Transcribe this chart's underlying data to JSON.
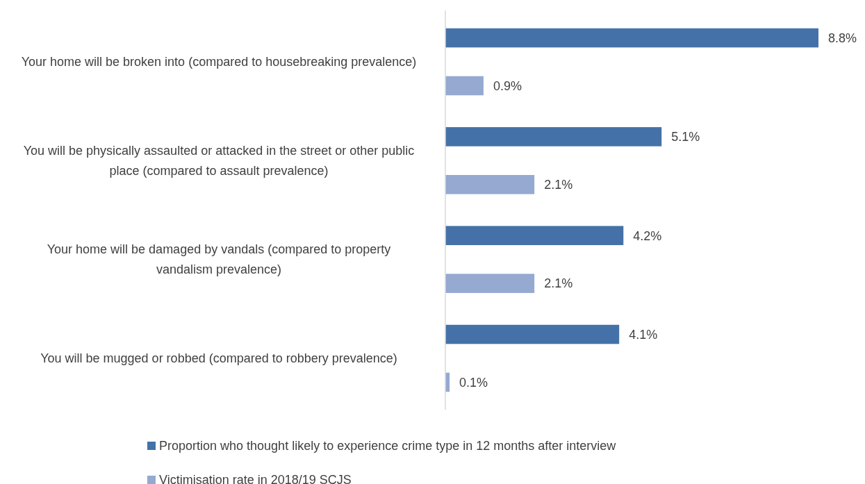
{
  "chart_data": {
    "type": "bar",
    "orientation": "horizontal",
    "categories": [
      "Your home will be broken into (compared to housebreaking prevalence)",
      "You will be physically assaulted or attacked in the street or other public place (compared to assault prevalence)",
      "Your home will be damaged by vandals (compared to property vandalism prevalence)",
      "You will be mugged or robbed (compared to robbery prevalence)"
    ],
    "series": [
      {
        "name": "Proportion who thought likely to experience crime type in 12 months after interview",
        "color": "#4472a8",
        "values": [
          8.8,
          5.1,
          4.2,
          4.1
        ],
        "value_labels": [
          "8.8%",
          "5.1%",
          "4.2%",
          "4.1%"
        ]
      },
      {
        "name": "Victimisation rate in 2018/19 SCJS",
        "color": "#95a9d1",
        "values": [
          0.9,
          2.1,
          2.1,
          0.1
        ],
        "value_labels": [
          "0.9%",
          "2.1%",
          "2.1%",
          "0.1%"
        ]
      }
    ],
    "legend": "bottom"
  }
}
